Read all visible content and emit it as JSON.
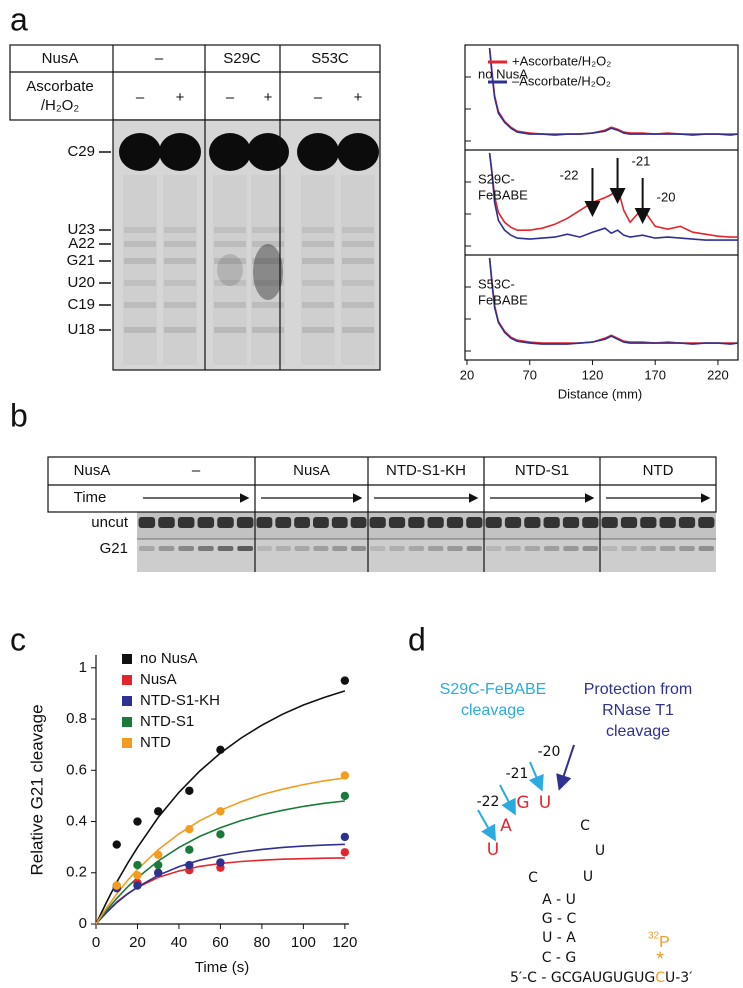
{
  "panel_labels": [
    "a",
    "b",
    "c",
    "d"
  ],
  "gel_a": {
    "header": [
      "NusA",
      "–",
      "S29C",
      "S53C"
    ],
    "reagent_label": [
      "Ascorbate",
      "/H₂O₂"
    ],
    "lanes": [
      "–",
      "+",
      "–",
      "+",
      "–",
      "+"
    ],
    "bands": [
      "C29",
      "U23",
      "A22",
      "G21",
      "U20",
      "C19",
      "U18"
    ]
  },
  "gel_b": {
    "row_labels": [
      "NusA",
      "Time"
    ],
    "columns": [
      "–",
      "NusA",
      "NTD-S1-KH",
      "NTD-S1",
      "NTD"
    ],
    "band_labels": [
      "uncut",
      "G21"
    ]
  },
  "chart_data": [
    {
      "type": "line",
      "xlabel": "Distance (mm)",
      "xlim": [
        20,
        236
      ],
      "xticks": [
        20,
        70,
        120,
        170,
        220
      ],
      "ylim": [
        0,
        1
      ],
      "x": [
        38,
        40,
        42,
        45,
        50,
        55,
        60,
        70,
        80,
        90,
        100,
        110,
        120,
        130,
        135,
        140,
        145,
        150,
        160,
        170,
        180,
        190,
        200,
        210,
        220,
        230,
        236
      ],
      "series": [
        {
          "name": "+Ascorbate/H₂O₂",
          "color": "#e3262d"
        },
        {
          "name": "–Ascorbate/H₂O₂",
          "color": "#2e3192"
        }
      ],
      "panels": [
        {
          "label": [
            "no NusA"
          ],
          "values": [
            [
              1.0,
              0.75,
              0.52,
              0.36,
              0.26,
              0.2,
              0.16,
              0.14,
              0.13,
              0.13,
              0.13,
              0.13,
              0.14,
              0.17,
              0.2,
              0.18,
              0.15,
              0.14,
              0.14,
              0.13,
              0.14,
              0.13,
              0.13,
              0.13,
              0.13,
              0.13,
              0.13
            ],
            [
              1.0,
              0.72,
              0.5,
              0.34,
              0.25,
              0.19,
              0.15,
              0.13,
              0.13,
              0.12,
              0.13,
              0.13,
              0.14,
              0.16,
              0.19,
              0.17,
              0.14,
              0.13,
              0.13,
              0.13,
              0.13,
              0.13,
              0.12,
              0.13,
              0.13,
              0.12,
              0.13
            ]
          ]
        },
        {
          "label": [
            "S29C-",
            "FeBABE"
          ],
          "values": [
            [
              1.0,
              0.8,
              0.56,
              0.4,
              0.3,
              0.25,
              0.22,
              0.22,
              0.24,
              0.28,
              0.34,
              0.42,
              0.5,
              0.55,
              0.58,
              0.65,
              0.42,
              0.3,
              0.44,
              0.26,
              0.23,
              0.26,
              0.2,
              0.18,
              0.16,
              0.15,
              0.15
            ],
            [
              1.0,
              0.78,
              0.5,
              0.32,
              0.22,
              0.17,
              0.14,
              0.13,
              0.14,
              0.15,
              0.18,
              0.15,
              0.2,
              0.24,
              0.19,
              0.22,
              0.17,
              0.15,
              0.17,
              0.14,
              0.15,
              0.14,
              0.13,
              0.12,
              0.12,
              0.12,
              0.12
            ]
          ]
        },
        {
          "label": [
            "S53C-",
            "FeBABE"
          ],
          "values": [
            [
              1.0,
              0.75,
              0.52,
              0.36,
              0.26,
              0.2,
              0.17,
              0.15,
              0.14,
              0.14,
              0.14,
              0.14,
              0.15,
              0.19,
              0.22,
              0.19,
              0.16,
              0.15,
              0.15,
              0.14,
              0.15,
              0.14,
              0.14,
              0.14,
              0.14,
              0.14,
              0.14
            ],
            [
              1.0,
              0.73,
              0.5,
              0.35,
              0.25,
              0.19,
              0.16,
              0.14,
              0.13,
              0.13,
              0.13,
              0.14,
              0.15,
              0.18,
              0.21,
              0.18,
              0.15,
              0.14,
              0.14,
              0.14,
              0.14,
              0.14,
              0.13,
              0.14,
              0.14,
              0.13,
              0.14
            ]
          ]
        }
      ],
      "annotations": [
        {
          "text": "-22",
          "x": 120
        },
        {
          "text": "-21",
          "x": 140
        },
        {
          "text": "-20",
          "x": 160
        }
      ]
    },
    {
      "type": "scatter",
      "xlabel": "Time (s)",
      "ylabel": "Relative G21 cleavage",
      "x": [
        10,
        20,
        30,
        45,
        60,
        120
      ],
      "xlim": [
        0,
        122
      ],
      "xticks": [
        0,
        20,
        40,
        60,
        80,
        100,
        120
      ],
      "ylim": [
        0,
        1.05
      ],
      "yticks": [
        0,
        0.2,
        0.4,
        0.6,
        0.8,
        1
      ],
      "fit_x": [
        0,
        5,
        10,
        15,
        20,
        30,
        40,
        50,
        60,
        70,
        80,
        90,
        100,
        110,
        120
      ],
      "series": [
        {
          "name": "no NusA",
          "color": "#111111",
          "values": [
            0.31,
            0.4,
            0.44,
            0.52,
            0.68,
            0.95
          ],
          "fit_values": [
            0,
            0.084,
            0.163,
            0.234,
            0.299,
            0.416,
            0.514,
            0.597,
            0.667,
            0.726,
            0.776,
            0.819,
            0.855,
            0.884,
            0.91
          ]
        },
        {
          "name": "NusA",
          "color": "#e3262d",
          "values": [
            0.14,
            0.16,
            0.2,
            0.21,
            0.22,
            0.28
          ],
          "fit_values": [
            0,
            0.047,
            0.086,
            0.117,
            0.143,
            0.182,
            0.207,
            0.225,
            0.236,
            0.244,
            0.249,
            0.253,
            0.255,
            0.257,
            0.258
          ]
        },
        {
          "name": "NTD-S1-KH",
          "color": "#2e3192",
          "values": [
            0.14,
            0.15,
            0.2,
            0.23,
            0.24,
            0.34
          ],
          "fit_values": [
            0,
            0.044,
            0.083,
            0.116,
            0.144,
            0.19,
            0.224,
            0.249,
            0.267,
            0.281,
            0.291,
            0.299,
            0.304,
            0.308,
            0.311
          ]
        },
        {
          "name": "NTD-S1",
          "color": "#1a7a3a",
          "values": [
            0.15,
            0.23,
            0.23,
            0.29,
            0.35,
            0.5
          ],
          "fit_values": [
            0,
            0.053,
            0.1,
            0.143,
            0.181,
            0.246,
            0.299,
            0.342,
            0.376,
            0.404,
            0.426,
            0.444,
            0.459,
            0.471,
            0.48
          ]
        },
        {
          "name": "NTD",
          "color": "#f39c1f",
          "values": [
            0.15,
            0.19,
            0.27,
            0.37,
            0.44,
            0.58
          ],
          "fit_values": [
            0,
            0.062,
            0.117,
            0.168,
            0.213,
            0.29,
            0.352,
            0.403,
            0.444,
            0.477,
            0.505,
            0.526,
            0.544,
            0.559,
            0.57
          ]
        }
      ]
    }
  ],
  "diagram_d": {
    "cleavage_label": [
      "S29C-FeBABE",
      "cleavage"
    ],
    "protection_label": [
      "Protection from",
      "RNase T1",
      "cleavage"
    ],
    "positions": [
      "-20",
      "-21",
      "-22"
    ],
    "bases": [
      "U",
      "A",
      "G",
      "U",
      "C",
      "U",
      "U",
      "C",
      "A - U",
      "G - C",
      "U - A",
      "C - G"
    ],
    "tail": [
      "5′-C - GCGAUGUGUG",
      "C",
      "U-3′"
    ],
    "isotope": {
      "mass": "32",
      "element": "P",
      "mark": "*"
    }
  }
}
